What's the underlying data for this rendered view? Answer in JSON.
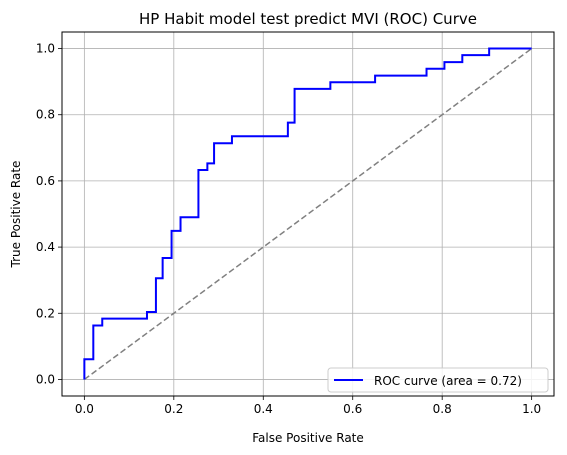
{
  "chart_data": {
    "type": "line",
    "title": "HP Habit model test predict MVI (ROC) Curve",
    "xlabel": "False Positive Rate",
    "ylabel": "True Positive Rate",
    "xlim": [
      -0.05,
      1.05
    ],
    "ylim": [
      -0.05,
      1.05
    ],
    "grid": true,
    "legend_position": "lower-right",
    "x_ticks": [
      "0.0",
      "0.2",
      "0.4",
      "0.6",
      "0.8",
      "1.0"
    ],
    "y_ticks": [
      "0.0",
      "0.2",
      "0.4",
      "0.6",
      "0.8",
      "1.0"
    ],
    "series": [
      {
        "name": "ROC curve (area = 0.72)",
        "color": "#0000ff",
        "style": "solid",
        "x": [
          0.0,
          0.0,
          0.02,
          0.02,
          0.04,
          0.04,
          0.14,
          0.14,
          0.16,
          0.16,
          0.175,
          0.175,
          0.195,
          0.195,
          0.215,
          0.215,
          0.255,
          0.255,
          0.275,
          0.275,
          0.29,
          0.29,
          0.33,
          0.33,
          0.455,
          0.455,
          0.47,
          0.47,
          0.55,
          0.55,
          0.65,
          0.65,
          0.765,
          0.765,
          0.805,
          0.805,
          0.845,
          0.845,
          0.905,
          0.905,
          1.0
        ],
        "y": [
          0.0,
          0.061,
          0.061,
          0.163,
          0.163,
          0.184,
          0.184,
          0.204,
          0.204,
          0.306,
          0.306,
          0.367,
          0.367,
          0.449,
          0.449,
          0.49,
          0.49,
          0.633,
          0.633,
          0.653,
          0.653,
          0.714,
          0.714,
          0.735,
          0.735,
          0.776,
          0.776,
          0.878,
          0.878,
          0.898,
          0.898,
          0.918,
          0.918,
          0.939,
          0.939,
          0.959,
          0.959,
          0.98,
          0.98,
          1.0,
          1.0
        ]
      },
      {
        "name": "",
        "color": "#808080",
        "style": "dashed",
        "x": [
          0.0,
          1.0
        ],
        "y": [
          0.0,
          1.0
        ]
      }
    ]
  }
}
